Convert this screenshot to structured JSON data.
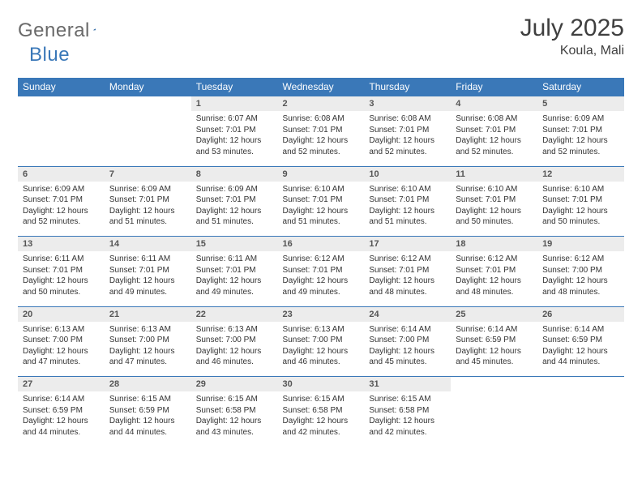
{
  "logo": {
    "general": "General",
    "blue": "Blue"
  },
  "title": "July 2025",
  "location": "Koula, Mali",
  "colors": {
    "header_bg": "#3a78b8",
    "header_fg": "#ffffff",
    "daynum_bg": "#ececec",
    "border": "#3a78b8",
    "logo_gray": "#6a6a6a",
    "logo_blue": "#3a78b8"
  },
  "day_headers": [
    "Sunday",
    "Monday",
    "Tuesday",
    "Wednesday",
    "Thursday",
    "Friday",
    "Saturday"
  ],
  "weeks": [
    [
      null,
      null,
      {
        "n": "1",
        "sr": "6:07 AM",
        "ss": "7:01 PM",
        "dl": "12 hours and 53 minutes."
      },
      {
        "n": "2",
        "sr": "6:08 AM",
        "ss": "7:01 PM",
        "dl": "12 hours and 52 minutes."
      },
      {
        "n": "3",
        "sr": "6:08 AM",
        "ss": "7:01 PM",
        "dl": "12 hours and 52 minutes."
      },
      {
        "n": "4",
        "sr": "6:08 AM",
        "ss": "7:01 PM",
        "dl": "12 hours and 52 minutes."
      },
      {
        "n": "5",
        "sr": "6:09 AM",
        "ss": "7:01 PM",
        "dl": "12 hours and 52 minutes."
      }
    ],
    [
      {
        "n": "6",
        "sr": "6:09 AM",
        "ss": "7:01 PM",
        "dl": "12 hours and 52 minutes."
      },
      {
        "n": "7",
        "sr": "6:09 AM",
        "ss": "7:01 PM",
        "dl": "12 hours and 51 minutes."
      },
      {
        "n": "8",
        "sr": "6:09 AM",
        "ss": "7:01 PM",
        "dl": "12 hours and 51 minutes."
      },
      {
        "n": "9",
        "sr": "6:10 AM",
        "ss": "7:01 PM",
        "dl": "12 hours and 51 minutes."
      },
      {
        "n": "10",
        "sr": "6:10 AM",
        "ss": "7:01 PM",
        "dl": "12 hours and 51 minutes."
      },
      {
        "n": "11",
        "sr": "6:10 AM",
        "ss": "7:01 PM",
        "dl": "12 hours and 50 minutes."
      },
      {
        "n": "12",
        "sr": "6:10 AM",
        "ss": "7:01 PM",
        "dl": "12 hours and 50 minutes."
      }
    ],
    [
      {
        "n": "13",
        "sr": "6:11 AM",
        "ss": "7:01 PM",
        "dl": "12 hours and 50 minutes."
      },
      {
        "n": "14",
        "sr": "6:11 AM",
        "ss": "7:01 PM",
        "dl": "12 hours and 49 minutes."
      },
      {
        "n": "15",
        "sr": "6:11 AM",
        "ss": "7:01 PM",
        "dl": "12 hours and 49 minutes."
      },
      {
        "n": "16",
        "sr": "6:12 AM",
        "ss": "7:01 PM",
        "dl": "12 hours and 49 minutes."
      },
      {
        "n": "17",
        "sr": "6:12 AM",
        "ss": "7:01 PM",
        "dl": "12 hours and 48 minutes."
      },
      {
        "n": "18",
        "sr": "6:12 AM",
        "ss": "7:01 PM",
        "dl": "12 hours and 48 minutes."
      },
      {
        "n": "19",
        "sr": "6:12 AM",
        "ss": "7:00 PM",
        "dl": "12 hours and 48 minutes."
      }
    ],
    [
      {
        "n": "20",
        "sr": "6:13 AM",
        "ss": "7:00 PM",
        "dl": "12 hours and 47 minutes."
      },
      {
        "n": "21",
        "sr": "6:13 AM",
        "ss": "7:00 PM",
        "dl": "12 hours and 47 minutes."
      },
      {
        "n": "22",
        "sr": "6:13 AM",
        "ss": "7:00 PM",
        "dl": "12 hours and 46 minutes."
      },
      {
        "n": "23",
        "sr": "6:13 AM",
        "ss": "7:00 PM",
        "dl": "12 hours and 46 minutes."
      },
      {
        "n": "24",
        "sr": "6:14 AM",
        "ss": "7:00 PM",
        "dl": "12 hours and 45 minutes."
      },
      {
        "n": "25",
        "sr": "6:14 AM",
        "ss": "6:59 PM",
        "dl": "12 hours and 45 minutes."
      },
      {
        "n": "26",
        "sr": "6:14 AM",
        "ss": "6:59 PM",
        "dl": "12 hours and 44 minutes."
      }
    ],
    [
      {
        "n": "27",
        "sr": "6:14 AM",
        "ss": "6:59 PM",
        "dl": "12 hours and 44 minutes."
      },
      {
        "n": "28",
        "sr": "6:15 AM",
        "ss": "6:59 PM",
        "dl": "12 hours and 44 minutes."
      },
      {
        "n": "29",
        "sr": "6:15 AM",
        "ss": "6:58 PM",
        "dl": "12 hours and 43 minutes."
      },
      {
        "n": "30",
        "sr": "6:15 AM",
        "ss": "6:58 PM",
        "dl": "12 hours and 42 minutes."
      },
      {
        "n": "31",
        "sr": "6:15 AM",
        "ss": "6:58 PM",
        "dl": "12 hours and 42 minutes."
      },
      null,
      null
    ]
  ],
  "labels": {
    "sunrise": "Sunrise: ",
    "sunset": "Sunset: ",
    "daylight": "Daylight: "
  }
}
